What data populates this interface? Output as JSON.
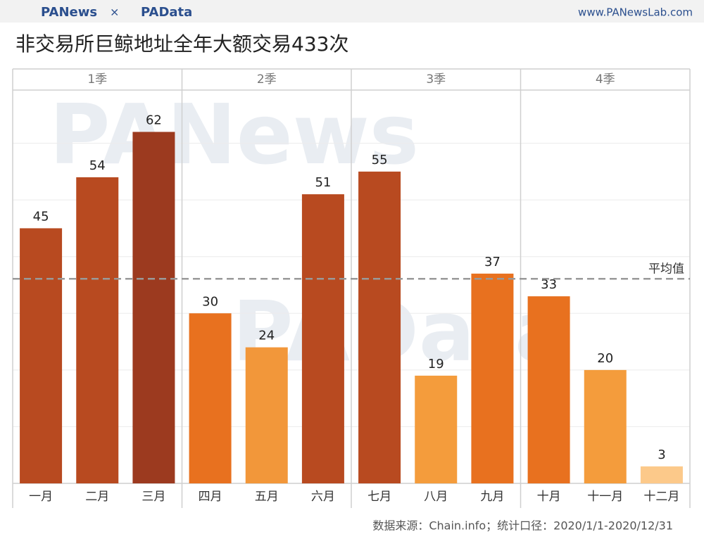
{
  "header": {
    "logo_left": "PANews",
    "separator": "×",
    "logo_right": "PAData",
    "site": "www.PANewsLab.com"
  },
  "chart_data": {
    "type": "bar",
    "title": "非交易所巨鲸地址全年大额交易433次",
    "groups": [
      "1季",
      "2季",
      "3季",
      "4季"
    ],
    "categories": [
      "一月",
      "二月",
      "三月",
      "四月",
      "五月",
      "六月",
      "七月",
      "八月",
      "九月",
      "十月",
      "十一月",
      "十二月"
    ],
    "values": [
      45,
      54,
      62,
      30,
      24,
      51,
      55,
      19,
      37,
      33,
      20,
      3
    ],
    "colors": [
      "#b84a20",
      "#b84a20",
      "#9c3a1f",
      "#e8711f",
      "#f2973a",
      "#b84a20",
      "#b84a20",
      "#f49c3c",
      "#e8711f",
      "#e8711f",
      "#f49c3c",
      "#fcc98a"
    ],
    "ylim": [
      0,
      70
    ],
    "yticks": [
      10,
      20,
      30,
      40,
      50,
      60
    ],
    "grid": true,
    "reference_line": {
      "label": "平均值",
      "value": 36.08
    },
    "watermarks": [
      "PANews",
      "PAData"
    ],
    "source": "数据来源：Chain.info；统计口径：2020/1/1-2020/12/31"
  }
}
